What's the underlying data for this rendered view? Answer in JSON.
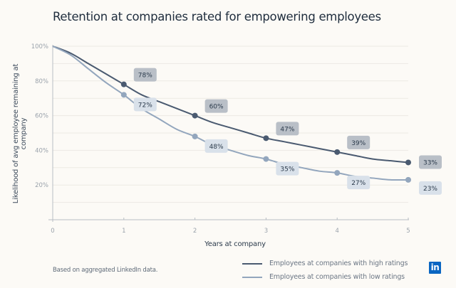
{
  "chart_data": {
    "type": "line",
    "title": "Retention at companies rated for empowering employees",
    "xlabel": "Years at company",
    "ylabel": "Likelihood of avg employee remaining at company",
    "x_ticks": [
      "0",
      "1",
      "2",
      "3",
      "4",
      "5"
    ],
    "y_ticks": [
      "20%",
      "40%",
      "60%",
      "80%",
      "100%"
    ],
    "xlim": [
      0,
      5
    ],
    "ylim": [
      0,
      100
    ],
    "grid": true,
    "legend_position": "bottom-right",
    "series": [
      {
        "name": "Employees at companies with high ratings",
        "color": "#4a5a70",
        "label_bg": "#b9bfc7",
        "x": [
          0,
          0.25,
          0.5,
          0.75,
          1,
          1.25,
          1.5,
          1.75,
          2,
          2.25,
          2.5,
          2.75,
          3,
          3.25,
          3.5,
          3.75,
          4,
          4.25,
          4.5,
          4.75,
          5
        ],
        "y": [
          100,
          96,
          90,
          84,
          78,
          72,
          68,
          64,
          60,
          56,
          53,
          50,
          47,
          45,
          43,
          41,
          39,
          37,
          35,
          34,
          33
        ],
        "markers": [
          {
            "x": 1,
            "y": 78,
            "label": "78%"
          },
          {
            "x": 2,
            "y": 60,
            "label": "60%"
          },
          {
            "x": 3,
            "y": 47,
            "label": "47%"
          },
          {
            "x": 4,
            "y": 39,
            "label": "39%"
          },
          {
            "x": 5,
            "y": 33,
            "label": "33%"
          }
        ]
      },
      {
        "name": "Employees at companies with low ratings",
        "color": "#93a6bd",
        "label_bg": "#d9e1ea",
        "x": [
          0,
          0.25,
          0.5,
          0.75,
          1,
          1.25,
          1.5,
          1.75,
          2,
          2.25,
          2.5,
          2.75,
          3,
          3.25,
          3.5,
          3.75,
          4,
          4.25,
          4.5,
          4.75,
          5
        ],
        "y": [
          100,
          95,
          87,
          79,
          72,
          64,
          58,
          52,
          48,
          43,
          40,
          37,
          35,
          32,
          30,
          28,
          27,
          25,
          24,
          23,
          23
        ],
        "markers": [
          {
            "x": 1,
            "y": 72,
            "label": "72%"
          },
          {
            "x": 2,
            "y": 48,
            "label": "48%"
          },
          {
            "x": 3,
            "y": 35,
            "label": "35%"
          },
          {
            "x": 4,
            "y": 27,
            "label": "27%"
          },
          {
            "x": 5,
            "y": 23,
            "label": "23%"
          }
        ]
      }
    ]
  },
  "footnote": "Based on aggregated LinkedIn data.",
  "brand_logo": "in",
  "brand_color": "#0a66c2"
}
